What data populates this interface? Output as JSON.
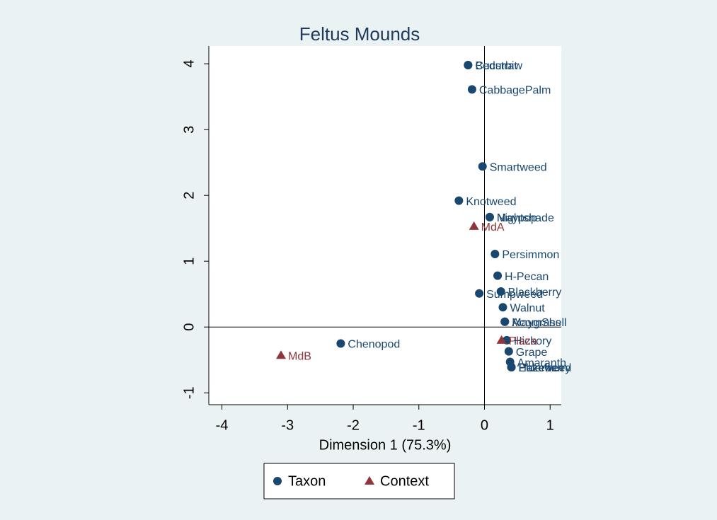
{
  "chart_data": {
    "type": "scatter",
    "title": "Feltus Mounds",
    "x_label": "Dimension 1 (75.3%)",
    "xlim": [
      -4.2,
      1.17
    ],
    "ylim": [
      -1.18,
      4.27
    ],
    "xticks": [
      -4,
      -3,
      -2,
      -1,
      0,
      1
    ],
    "yticks": [
      -1,
      0,
      1,
      2,
      3,
      4
    ],
    "reference_lines": true,
    "legend": "bottom",
    "series": [
      {
        "name": "Taxon",
        "color": "#1a476f",
        "marker": "circle",
        "labels": [
          "Bedstraw",
          "Cucurbit",
          "CabbagePalm",
          "Smartweed",
          "Knotweed",
          "Nightshade",
          "Maypop",
          "Persimmon",
          "H-Pecan",
          "Blackberry",
          "Sumpweed",
          "Walnut",
          "AcornShell",
          "Maygrass",
          "Hickory",
          "Grape",
          "Amaranth",
          "Elderberry",
          "Pokeweed",
          "Hazelnut",
          "Chenopod"
        ],
        "x": [
          -0.25,
          -0.25,
          -0.19,
          -0.03,
          -0.39,
          0.08,
          0.08,
          0.16,
          0.2,
          0.25,
          -0.08,
          0.28,
          0.31,
          0.31,
          0.34,
          0.37,
          0.39,
          0.41,
          0.41,
          0.41,
          -2.19
        ],
        "values": [
          3.98,
          3.98,
          3.61,
          2.44,
          1.92,
          1.67,
          1.67,
          1.11,
          0.78,
          0.54,
          0.51,
          0.3,
          0.08,
          0.08,
          -0.2,
          -0.37,
          -0.53,
          -0.61,
          -0.61,
          -0.61,
          -0.25
        ]
      },
      {
        "name": "Context",
        "color": "#90353b",
        "marker": "triangle",
        "labels": [
          "MdA",
          "Plaza",
          "MdB"
        ],
        "x": [
          -0.16,
          0.26,
          -3.1
        ],
        "values": [
          1.53,
          -0.2,
          -0.43
        ]
      }
    ]
  }
}
